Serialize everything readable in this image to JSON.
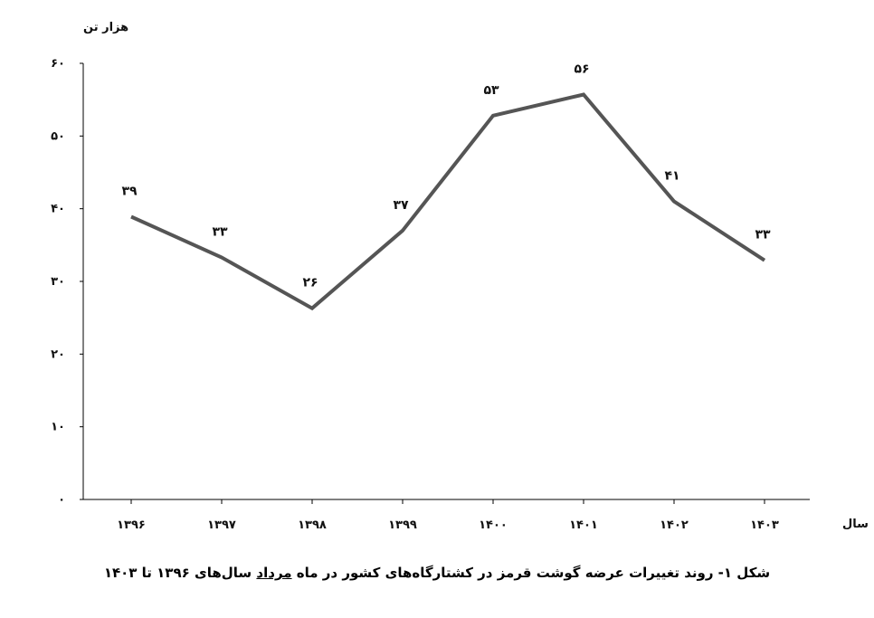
{
  "chart_data": {
    "type": "line",
    "ylabel": "هزار تن",
    "xlabel": "سال",
    "x": [
      "۱۳۹۶",
      "۱۳۹۷",
      "۱۳۹۸",
      "۱۳۹۹",
      "۱۴۰۰",
      "۱۴۰۱",
      "۱۴۰۲",
      "۱۴۰۳"
    ],
    "series": [
      {
        "values": [
          39,
          33,
          26,
          37,
          53,
          56,
          41,
          33
        ],
        "labels": [
          "۳۹",
          "۳۳",
          "۲۶",
          "۳۷",
          "۵۳",
          "۵۶",
          "۴۱",
          "۳۳"
        ],
        "plotted": [
          38.9,
          33.3,
          26.3,
          37.0,
          52.8,
          55.7,
          41.0,
          32.9
        ]
      }
    ],
    "ylim": [
      0,
      60
    ],
    "yticks": [
      0,
      10,
      20,
      30,
      40,
      50,
      60
    ],
    "ytick_labels": [
      "۰",
      "۱۰",
      "۲۰",
      "۳۰",
      "۴۰",
      "۵۰",
      "۶۰"
    ],
    "grid": false,
    "line_color": "#555555"
  },
  "caption": {
    "before": "شکل ۱- روند تغییرات عرضه گوشت قرمز در کشتارگاه‌های کشور در ماه ",
    "underlined": "مرداد",
    "after": " سال‌های ۱۳۹۶ تا ۱۴۰۳"
  }
}
